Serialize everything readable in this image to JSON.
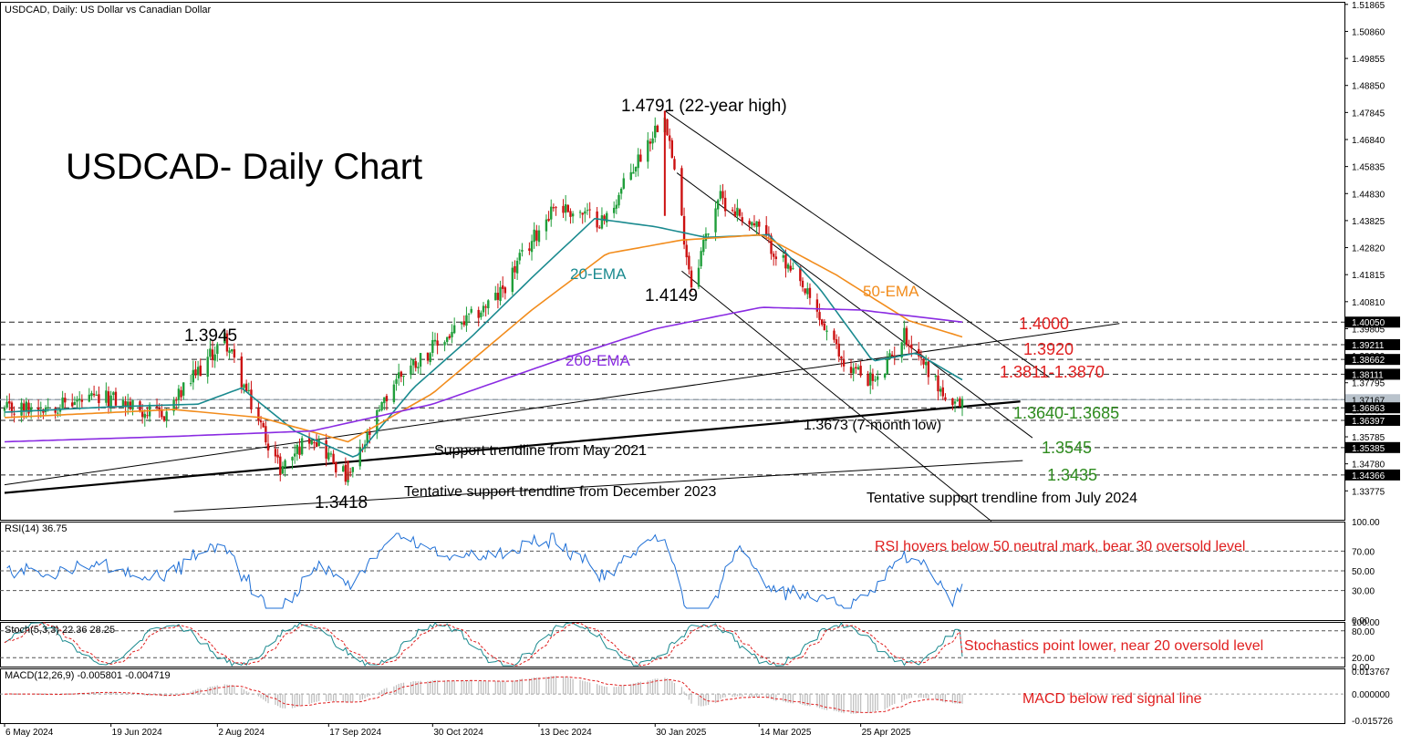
{
  "header": {
    "symbol_info": "USDCAD, Daily:  US Dollar vs Canadian Dollar",
    "title": "USDCAD- Daily Chart"
  },
  "colors": {
    "ema20": "#1a8a8f",
    "ema50": "#f28c1c",
    "ema200": "#8a2be2",
    "bull": "#1f9e3a",
    "bear": "#cc1111",
    "rsi": "#1e6fd6",
    "stoch_main": "#1a8a8f",
    "stoch_signal": "#e01f1f",
    "macd_hist": "#bdbdbd",
    "macd_signal": "#e01f1f",
    "support_label": "#2e8b1e",
    "resistance_label": "#e01f1f"
  },
  "chart_data": [
    {
      "type": "candlestick",
      "name": "price",
      "ylim": [
        1.327,
        1.5196
      ],
      "y_tick_labels": [
        "1.51865",
        "1.50860",
        "1.49855",
        "1.48850",
        "1.47845",
        "1.46840",
        "1.45835",
        "1.44830",
        "1.43825",
        "1.42820",
        "1.41815",
        "1.40810",
        "1.39805",
        "1.38800",
        "1.37795",
        "1.36790",
        "1.35785",
        "1.34780",
        "1.33775"
      ],
      "highlighted_levels": [
        "1.40050",
        "1.39211",
        "1.38662",
        "1.38111",
        "1.37167",
        "1.36863",
        "1.36397",
        "1.35385",
        "1.34366"
      ],
      "current_price": 1.37167,
      "x_labels": [
        "6 May 2024",
        "19 Jun 2024",
        "2 Aug 2024",
        "17 Sep 2024",
        "30 Oct 2024",
        "13 Dec 2024",
        "30 Jan 2025",
        "14 Mar 2025",
        "25 Apr 2025"
      ],
      "anchors": [
        {
          "date": "2024-05-06",
          "price": 1.3675
        },
        {
          "date": "2024-05-28",
          "price": 1.37
        },
        {
          "date": "2024-06-19",
          "price": 1.372
        },
        {
          "date": "2024-07-10",
          "price": 1.365
        },
        {
          "date": "2024-08-05",
          "price": 1.3945
        },
        {
          "date": "2024-08-15",
          "price": 1.372
        },
        {
          "date": "2024-08-28",
          "price": 1.346
        },
        {
          "date": "2024-09-10",
          "price": 1.359
        },
        {
          "date": "2024-09-25",
          "price": 1.3418
        },
        {
          "date": "2024-10-15",
          "price": 1.38
        },
        {
          "date": "2024-11-05",
          "price": 1.395
        },
        {
          "date": "2024-11-26",
          "price": 1.41
        },
        {
          "date": "2024-12-19",
          "price": 1.444
        },
        {
          "date": "2025-01-09",
          "price": 1.438
        },
        {
          "date": "2025-02-03",
          "price": 1.4791
        },
        {
          "date": "2025-02-14",
          "price": 1.4149
        },
        {
          "date": "2025-02-25",
          "price": 1.447
        },
        {
          "date": "2025-03-14",
          "price": 1.435
        },
        {
          "date": "2025-04-03",
          "price": 1.41
        },
        {
          "date": "2025-04-18",
          "price": 1.385
        },
        {
          "date": "2025-05-02",
          "price": 1.378
        },
        {
          "date": "2025-05-13",
          "price": 1.396
        },
        {
          "date": "2025-05-23",
          "price": 1.383
        },
        {
          "date": "2025-06-02",
          "price": 1.3673
        },
        {
          "date": "2025-06-06",
          "price": 1.3717
        }
      ],
      "series": [
        {
          "name": "20-EMA",
          "anchors": [
            {
              "date": "2024-05-06",
              "price": 1.367
            },
            {
              "date": "2024-06-19",
              "price": 1.369
            },
            {
              "date": "2024-07-25",
              "price": 1.37
            },
            {
              "date": "2024-08-12",
              "price": 1.376
            },
            {
              "date": "2024-09-03",
              "price": 1.36
            },
            {
              "date": "2024-09-28",
              "price": 1.35
            },
            {
              "date": "2024-10-22",
              "price": 1.376
            },
            {
              "date": "2024-11-15",
              "price": 1.395
            },
            {
              "date": "2024-12-10",
              "price": 1.417
            },
            {
              "date": "2025-01-05",
              "price": 1.439
            },
            {
              "date": "2025-01-30",
              "price": 1.436
            },
            {
              "date": "2025-02-20",
              "price": 1.432
            },
            {
              "date": "2025-03-18",
              "price": 1.433
            },
            {
              "date": "2025-04-08",
              "price": 1.413
            },
            {
              "date": "2025-04-30",
              "price": 1.386
            },
            {
              "date": "2025-05-18",
              "price": 1.389
            },
            {
              "date": "2025-06-06",
              "price": 1.379
            }
          ]
        },
        {
          "name": "50-EMA",
          "anchors": [
            {
              "date": "2024-05-06",
              "price": 1.365
            },
            {
              "date": "2024-07-15",
              "price": 1.368
            },
            {
              "date": "2024-08-20",
              "price": 1.365
            },
            {
              "date": "2024-09-25",
              "price": 1.356
            },
            {
              "date": "2024-10-30",
              "price": 1.374
            },
            {
              "date": "2024-12-10",
              "price": 1.405
            },
            {
              "date": "2025-01-10",
              "price": 1.426
            },
            {
              "date": "2025-02-10",
              "price": 1.431
            },
            {
              "date": "2025-03-15",
              "price": 1.433
            },
            {
              "date": "2025-04-15",
              "price": 1.418
            },
            {
              "date": "2025-05-15",
              "price": 1.401
            },
            {
              "date": "2025-06-06",
              "price": 1.395
            }
          ]
        },
        {
          "name": "200-EMA",
          "anchors": [
            {
              "date": "2024-05-06",
              "price": 1.356
            },
            {
              "date": "2024-07-15",
              "price": 1.358
            },
            {
              "date": "2024-09-10",
              "price": 1.36
            },
            {
              "date": "2024-10-30",
              "price": 1.37
            },
            {
              "date": "2024-12-20",
              "price": 1.386
            },
            {
              "date": "2025-01-30",
              "price": 1.398
            },
            {
              "date": "2025-03-15",
              "price": 1.406
            },
            {
              "date": "2025-04-25",
              "price": 1.405
            },
            {
              "date": "2025-06-06",
              "price": 1.4005
            }
          ]
        }
      ],
      "trendlines": [
        {
          "name": "Support trendline from May 2021",
          "from": {
            "date": "2024-05-06",
            "price": 1.337
          },
          "to": {
            "date": "2025-06-30",
            "price": 1.371
          }
        },
        {
          "name": "Tentative support trendline from December 2023",
          "from": {
            "date": "2024-05-06",
            "price": 1.34
          },
          "to": {
            "date": "2025-08-10",
            "price": 1.4
          }
        },
        {
          "name": "Tentative support trendline from July 2024",
          "from": {
            "date": "2024-07-15",
            "price": 1.33
          },
          "to": {
            "date": "2025-07-01",
            "price": 1.349
          }
        },
        {
          "name": "upper channel line",
          "from": {
            "date": "2025-02-03",
            "price": 1.4791
          },
          "to": {
            "date": "2025-07-12",
            "price": 1.38
          }
        },
        {
          "name": "middle channel line",
          "from": {
            "date": "2025-02-08",
            "price": 1.456
          },
          "to": {
            "date": "2025-07-05",
            "price": 1.3575
          }
        },
        {
          "name": "lower channel line",
          "from": {
            "date": "2025-02-10",
            "price": 1.4195
          },
          "to": {
            "date": "2025-06-18",
            "price": 1.3265
          }
        }
      ],
      "annotations": [
        {
          "text": "1.4791 (22-year high)",
          "color": "black"
        },
        {
          "text": "1.4149",
          "color": "black"
        },
        {
          "text": "1.3945",
          "color": "black"
        },
        {
          "text": "1.3418",
          "color": "black"
        },
        {
          "text": "1.3673 (7-month low)",
          "color": "black"
        },
        {
          "text": "20-EMA",
          "color": "ema20"
        },
        {
          "text": "50-EMA",
          "color": "ema50"
        },
        {
          "text": "200-EMA",
          "color": "ema200"
        },
        {
          "text": "1.4000",
          "color": "red"
        },
        {
          "text": "1.3920",
          "color": "red"
        },
        {
          "text": "1.3811-1.3870",
          "color": "red"
        },
        {
          "text": "1.3640-1.3685",
          "color": "green"
        },
        {
          "text": "1.3545",
          "color": "green"
        },
        {
          "text": "1.3435",
          "color": "green"
        },
        {
          "text": "Support trendline from May 2021",
          "color": "black"
        },
        {
          "text": "Tentative support trendline from December 2023",
          "color": "black"
        },
        {
          "text": "Tentative support trendline from July 2024",
          "color": "black"
        }
      ]
    },
    {
      "type": "line",
      "name": "RSI(14)",
      "header": "RSI(14) 36.75",
      "value": 36.75,
      "ylim": [
        0,
        100
      ],
      "y_tick_labels": [
        "100.00",
        "70.00",
        "50.00",
        "30.00",
        "0.00"
      ],
      "levels": [
        70,
        50,
        30
      ],
      "annotation": "RSI hovers below 50 neutral mark, bear 30 oversold level"
    },
    {
      "type": "line",
      "name": "Stoch(5,3,3)",
      "header": "Stoch(5,3,3) 22.36 28.25",
      "main": 22.36,
      "signal": 28.25,
      "ylim": [
        0,
        100
      ],
      "y_tick_labels": [
        "100.00",
        "80.00",
        "20.00",
        "0.00"
      ],
      "levels": [
        80,
        20
      ],
      "annotation": "Stochastics point lower, near 20 oversold level"
    },
    {
      "type": "bar",
      "name": "MACD(12,26,9)",
      "header": "MACD(12,26,9) -0.005801 -0.004719",
      "macd": -0.005801,
      "signal": -0.004719,
      "ylim": [
        -0.0175,
        0.0155
      ],
      "y_tick_labels": [
        "0.013767",
        "0.000000",
        "-0.015726"
      ],
      "annotation": "MACD below red signal line"
    }
  ]
}
